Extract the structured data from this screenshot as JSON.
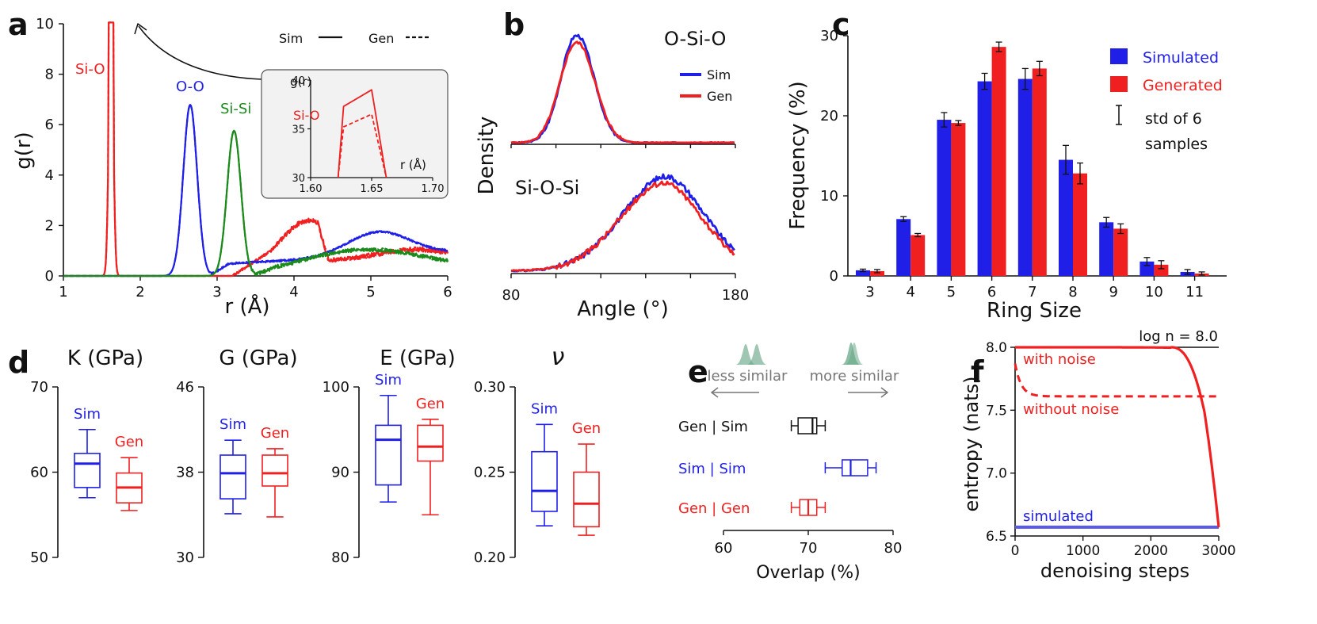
{
  "colors": {
    "sim": "#1f1fe8",
    "gen": "#f02020",
    "sisi": "#1a8a1a",
    "black": "#111111",
    "gray": "#777777",
    "green": "#6aa889"
  },
  "panels": {
    "a": "a",
    "b": "b",
    "c": "c",
    "d": "d",
    "e": "e",
    "f": "f"
  },
  "chart_data": [
    {
      "panel": "a",
      "type": "line",
      "xlabel": "r (Å)",
      "ylabel": "g(r)",
      "xlim": [
        1,
        6
      ],
      "ylim": [
        0,
        10
      ],
      "xticks": [
        "1",
        "2",
        "3",
        "4",
        "5",
        "6"
      ],
      "yticks": [
        "0",
        "2",
        "4",
        "6",
        "8",
        "10"
      ],
      "legend": {
        "sim": "Sim",
        "gen": "Gen"
      },
      "peak_labels": {
        "sio": "Si-O",
        "oo": "O-O",
        "sisi": "Si-Si"
      },
      "series": [
        {
          "name": "Si-O",
          "peak_r": 1.62,
          "peak_g": 10.0,
          "width": 0.03
        },
        {
          "name": "O-O",
          "peak_r": 2.65,
          "peak_g": 7.0,
          "width": 0.09
        },
        {
          "name": "Si-Si",
          "peak_r": 3.22,
          "peak_g": 6.0,
          "width": 0.09
        }
      ],
      "inset": {
        "ylabel": "g(r)",
        "xlabel": "r (Å)",
        "xticks": [
          "1.60",
          "1.65",
          "1.70"
        ],
        "yticks": [
          "30",
          "35",
          "40"
        ],
        "label": "Si-O",
        "xlim": [
          1.6,
          1.7
        ],
        "ylim": [
          30,
          40
        ],
        "sim_peak": 39.0,
        "gen_peak": 36.5
      }
    },
    {
      "panel": "b",
      "type": "line",
      "xlabel": "Angle (°)",
      "ylabel": "Density",
      "xlim": [
        80,
        180
      ],
      "xticks": [
        "80",
        "180"
      ],
      "legend": {
        "sim": "Sim",
        "gen": "Gen"
      },
      "titles": {
        "top": "O-Si-O",
        "bottom": "Si-O-Si"
      },
      "series": [
        {
          "name": "O-Si-O",
          "peak_angle": 109,
          "width": 7
        },
        {
          "name": "Si-O-Si",
          "peak_angle": 148,
          "width": 18
        }
      ]
    },
    {
      "panel": "c",
      "type": "bar",
      "xlabel": "Ring Size",
      "ylabel": "Frequency (%)",
      "ylim": [
        0,
        30
      ],
      "yticks": [
        "0",
        "10",
        "20",
        "30"
      ],
      "categories": [
        "3",
        "4",
        "5",
        "6",
        "7",
        "8",
        "9",
        "10",
        "11"
      ],
      "series": [
        {
          "name": "Simulated",
          "values": [
            0.7,
            7.1,
            19.5,
            24.3,
            24.6,
            14.5,
            6.7,
            1.8,
            0.5
          ],
          "err": [
            0.15,
            0.3,
            0.9,
            1.0,
            1.3,
            1.8,
            0.6,
            0.5,
            0.3
          ]
        },
        {
          "name": "Generated",
          "values": [
            0.6,
            5.1,
            19.1,
            28.6,
            25.9,
            12.8,
            5.9,
            1.4,
            0.3
          ],
          "err": [
            0.2,
            0.2,
            0.3,
            0.6,
            0.9,
            1.3,
            0.6,
            0.5,
            0.2
          ]
        }
      ],
      "errlabel": "std of 6\nsamples"
    },
    {
      "panel": "d",
      "type": "box",
      "subplots": [
        {
          "title": "K (GPa)",
          "ylim": [
            50,
            70
          ],
          "yticks": [
            "50",
            "60",
            "70"
          ],
          "sim": {
            "min": 57,
            "q1": 58.2,
            "med": 61,
            "q3": 62.2,
            "max": 65
          },
          "gen": {
            "min": 55.5,
            "q1": 56.4,
            "med": 58.2,
            "q3": 59.9,
            "max": 61.7
          }
        },
        {
          "title": "G (GPa)",
          "ylim": [
            30,
            46
          ],
          "yticks": [
            "30",
            "38",
            "46"
          ],
          "sim": {
            "min": 34.1,
            "q1": 35.5,
            "med": 37.9,
            "q3": 39.6,
            "max": 41
          },
          "gen": {
            "min": 33.8,
            "q1": 36.7,
            "med": 37.9,
            "q3": 39.6,
            "max": 40.2
          }
        },
        {
          "title": "E (GPa)",
          "ylim": [
            80,
            100
          ],
          "yticks": [
            "80",
            "90",
            "100"
          ],
          "sim": {
            "min": 86.5,
            "q1": 88.5,
            "med": 93.8,
            "q3": 95.5,
            "max": 99
          },
          "gen": {
            "min": 85,
            "q1": 91.3,
            "med": 93,
            "q3": 95.5,
            "max": 96.2
          }
        },
        {
          "title": "ν",
          "ylim": [
            0.2,
            0.3
          ],
          "yticks": [
            "0.20",
            "0.25",
            "0.30"
          ],
          "sim": {
            "min": 0.2185,
            "q1": 0.227,
            "med": 0.239,
            "q3": 0.262,
            "max": 0.278
          },
          "gen": {
            "min": 0.213,
            "q1": 0.218,
            "med": 0.2315,
            "q3": 0.25,
            "max": 0.2665
          }
        }
      ],
      "labels": {
        "sim": "Sim",
        "gen": "Gen"
      }
    },
    {
      "panel": "e",
      "type": "box",
      "xlabel": "Overlap (%)",
      "xlim": [
        60,
        80
      ],
      "xticks": [
        "60",
        "70",
        "80"
      ],
      "legend": {
        "less": "less similar",
        "more": "more similar"
      },
      "rows": [
        {
          "label": "Gen | Sim",
          "min": 68.0,
          "q1": 68.8,
          "med": 70.5,
          "q3": 71.0,
          "max": 72.0
        },
        {
          "label": "Sim | Sim",
          "min": 72.0,
          "q1": 74.0,
          "med": 75.0,
          "q3": 77.0,
          "max": 78.0
        },
        {
          "label": "Gen | Gen",
          "min": 68.0,
          "q1": 69.0,
          "med": 70.0,
          "q3": 71.0,
          "max": 72.0
        }
      ]
    },
    {
      "panel": "f",
      "type": "line",
      "xlabel": "denoising steps",
      "ylabel": "entropy (nats)",
      "xlim": [
        0,
        3000
      ],
      "ylim": [
        6.5,
        8.0
      ],
      "xticks": [
        "0",
        "1000",
        "2000",
        "3000"
      ],
      "yticks": [
        "6.5",
        "7.0",
        "7.5",
        "8.0"
      ],
      "reference": {
        "label": "log n = 8.0",
        "value": 8.0
      },
      "simulated": {
        "label": "simulated",
        "value": 6.57
      },
      "series": [
        {
          "name": "with noise",
          "plateau": 8.0,
          "drop_start": 2300,
          "end": 6.57
        },
        {
          "name": "without noise",
          "start": 7.87,
          "plateau": 7.61
        }
      ]
    }
  ]
}
